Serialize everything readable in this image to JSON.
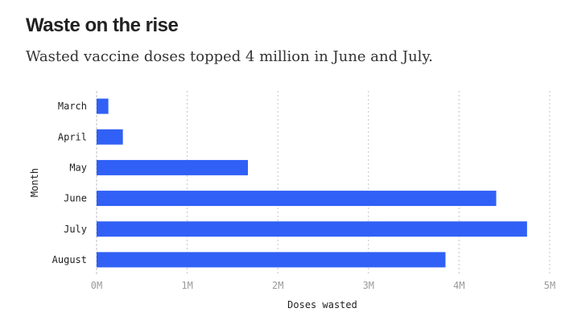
{
  "chart_data": {
    "type": "bar",
    "orientation": "horizontal",
    "title": "Waste on the rise",
    "subtitle": "Wasted vaccine doses topped 4 million in June and July.",
    "categories": [
      "March",
      "April",
      "May",
      "June",
      "July",
      "August"
    ],
    "values": [
      130000,
      290000,
      1670000,
      4410000,
      4750000,
      3850000
    ],
    "xlabel": "Doses wasted",
    "ylabel": "Month",
    "xlim": [
      0,
      5000000
    ],
    "x_ticks": [
      0,
      1000000,
      2000000,
      3000000,
      4000000,
      5000000
    ],
    "x_tick_labels": [
      "0M",
      "1M",
      "2M",
      "3M",
      "4M",
      "5M"
    ],
    "grid": "vertical dotted",
    "bar_color": "#3060f5"
  }
}
